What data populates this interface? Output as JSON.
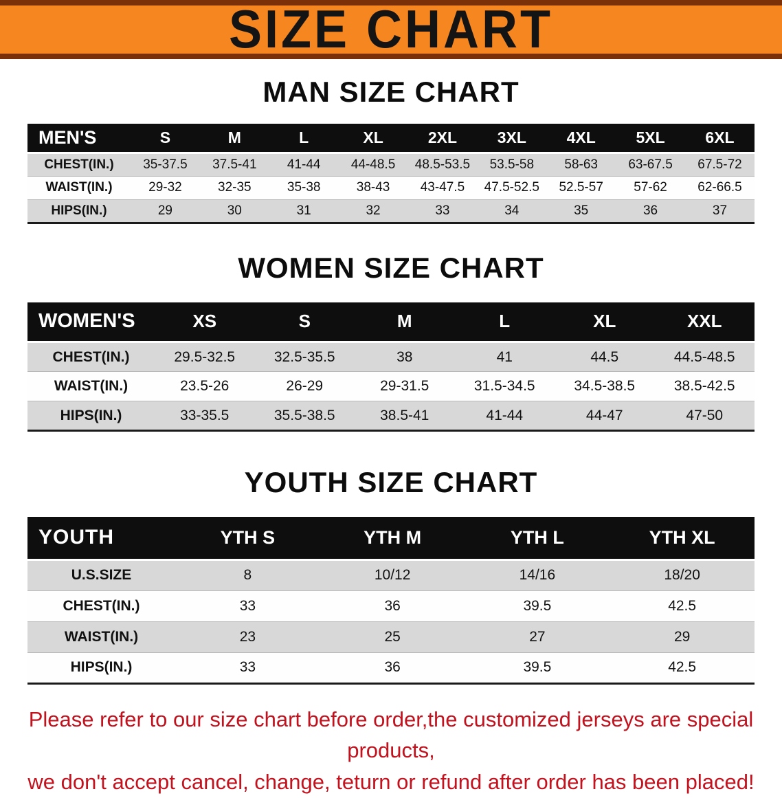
{
  "banner": {
    "title": "SIZE CHART",
    "bg_color": "#f6861f",
    "edge_color": "#7b3008"
  },
  "sections": [
    {
      "heading": "MAN SIZE CHART",
      "table": {
        "header": [
          "MEN'S",
          "S",
          "M",
          "L",
          "XL",
          "2XL",
          "3XL",
          "4XL",
          "5XL",
          "6XL"
        ],
        "rows": [
          [
            "CHEST(IN.)",
            "35-37.5",
            "37.5-41",
            "41-44",
            "44-48.5",
            "48.5-53.5",
            "53.5-58",
            "58-63",
            "63-67.5",
            "67.5-72"
          ],
          [
            "WAIST(IN.)",
            "29-32",
            "32-35",
            "35-38",
            "38-43",
            "43-47.5",
            "47.5-52.5",
            "52.5-57",
            "57-62",
            "62-66.5"
          ],
          [
            "HIPS(IN.)",
            "29",
            "30",
            "31",
            "32",
            "33",
            "34",
            "35",
            "36",
            "37"
          ]
        ]
      }
    },
    {
      "heading": "WOMEN SIZE CHART",
      "table": {
        "header": [
          "WOMEN'S",
          "XS",
          "S",
          "M",
          "L",
          "XL",
          "XXL"
        ],
        "rows": [
          [
            "CHEST(IN.)",
            "29.5-32.5",
            "32.5-35.5",
            "38",
            "41",
            "44.5",
            "44.5-48.5"
          ],
          [
            "WAIST(IN.)",
            "23.5-26",
            "26-29",
            "29-31.5",
            "31.5-34.5",
            "34.5-38.5",
            "38.5-42.5"
          ],
          [
            "HIPS(IN.)",
            "33-35.5",
            "35.5-38.5",
            "38.5-41",
            "41-44",
            "44-47",
            "47-50"
          ]
        ]
      }
    },
    {
      "heading": "YOUTH SIZE CHART",
      "table": {
        "header": [
          "YOUTH",
          "YTH S",
          "YTH M",
          "YTH L",
          "YTH XL"
        ],
        "rows": [
          [
            "U.S.SIZE",
            "8",
            "10/12",
            "14/16",
            "18/20"
          ],
          [
            "CHEST(IN.)",
            "33",
            "36",
            "39.5",
            "42.5"
          ],
          [
            "WAIST(IN.)",
            "23",
            "25",
            "27",
            "29"
          ],
          [
            "HIPS(IN.)",
            "33",
            "36",
            "39.5",
            "42.5"
          ]
        ]
      }
    }
  ],
  "footer": {
    "text_color": "#c2121e",
    "lines": [
      "Please refer to our size chart before order,the customized jerseys are special products,",
      "we don't accept cancel, change, teturn or refund after order has been placed!"
    ]
  }
}
